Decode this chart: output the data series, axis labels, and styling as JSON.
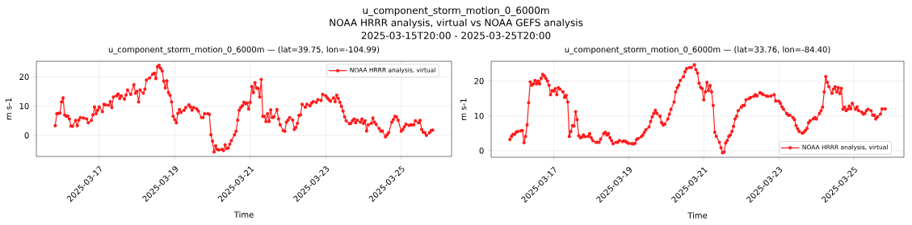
{
  "chart_data": [
    {
      "type": "line",
      "title": "u_component_storm_motion_0_6000m — (lat=39.75, lon=-104.99)",
      "xlabel": "Time",
      "ylabel": "m s-1",
      "annotations": [
        "u_component_storm_motion_0_6000m",
        "NOAA HRRR analysis, virtual vs NOAA GEFS analysis",
        "2025-03-15T20:00 - 2025-03-25T20:00"
      ],
      "xlim": [
        "2025-03-15T08:00",
        "2025-03-26T08:00"
      ],
      "xticks": [
        "2025-03-17",
        "2025-03-19",
        "2025-03-21",
        "2025-03-23",
        "2025-03-25"
      ],
      "ylim": [
        -7.2,
        25.3
      ],
      "yticks": [
        0,
        10,
        20
      ],
      "grid": true,
      "legend": "top right",
      "marker": "circle",
      "series": [
        {
          "name": "NOAA HRRR analysis, virtual",
          "color": "#ff1c1c",
          "x": [
            "2025-03-15T20:00",
            "2025-03-15T21:00",
            "2025-03-15T22:00",
            "2025-03-15T23:00",
            "2025-03-16T00:00",
            "2025-03-16T01:00",
            "2025-03-16T02:00",
            "2025-03-16T03:00",
            "2025-03-16T04:00",
            "2025-03-16T05:00",
            "2025-03-16T06:00",
            "2025-03-16T07:00",
            "2025-03-16T09:00",
            "2025-03-16T10:00",
            "2025-03-16T11:00",
            "2025-03-16T12:00",
            "2025-03-16T14:00",
            "2025-03-16T16:00",
            "2025-03-16T17:00",
            "2025-03-16T19:00",
            "2025-03-16T20:00",
            "2025-03-16T21:00",
            "2025-03-16T22:00",
            "2025-03-16T23:00",
            "2025-03-17T00:00",
            "2025-03-17T02:00",
            "2025-03-17T03:00",
            "2025-03-17T04:00",
            "2025-03-17T06:00",
            "2025-03-17T07:00",
            "2025-03-17T08:00",
            "2025-03-17T09:00",
            "2025-03-17T11:00",
            "2025-03-17T12:00",
            "2025-03-17T13:00",
            "2025-03-17T14:00",
            "2025-03-17T16:00",
            "2025-03-17T17:00",
            "2025-03-17T18:00",
            "2025-03-17T20:00",
            "2025-03-17T22:00",
            "2025-03-17T23:00",
            "2025-03-18T00:00",
            "2025-03-18T01:00",
            "2025-03-18T02:00",
            "2025-03-18T04:00",
            "2025-03-18T05:00",
            "2025-03-18T06:00",
            "2025-03-18T08:00",
            "2025-03-18T10:00",
            "2025-03-18T11:00",
            "2025-03-18T12:00",
            "2025-03-18T13:00",
            "2025-03-18T14:00",
            "2025-03-18T15:00",
            "2025-03-18T16:00",
            "2025-03-18T17:00",
            "2025-03-18T18:00",
            "2025-03-18T19:00",
            "2025-03-18T20:00",
            "2025-03-18T21:00",
            "2025-03-18T22:00",
            "2025-03-18T23:00",
            "2025-03-19T00:00",
            "2025-03-19T01:00",
            "2025-03-19T02:00",
            "2025-03-19T03:00",
            "2025-03-19T04:00",
            "2025-03-19T06:00",
            "2025-03-19T07:00",
            "2025-03-19T09:00",
            "2025-03-19T10:00",
            "2025-03-19T11:00",
            "2025-03-19T12:00",
            "2025-03-19T14:00",
            "2025-03-19T15:00",
            "2025-03-19T17:00",
            "2025-03-19T18:00",
            "2025-03-19T19:00",
            "2025-03-19T21:00",
            "2025-03-19T22:00",
            "2025-03-19T23:00",
            "2025-03-20T00:00",
            "2025-03-20T01:00",
            "2025-03-20T02:00",
            "2025-03-20T03:00",
            "2025-03-20T04:00",
            "2025-03-20T06:00",
            "2025-03-20T07:00",
            "2025-03-20T08:00",
            "2025-03-20T09:00",
            "2025-03-20T10:00",
            "2025-03-20T11:00",
            "2025-03-20T12:00",
            "2025-03-20T14:00",
            "2025-03-20T15:00",
            "2025-03-20T16:00",
            "2025-03-20T17:00",
            "2025-03-20T18:00",
            "2025-03-20T19:00",
            "2025-03-20T20:00",
            "2025-03-20T21:00",
            "2025-03-20T22:00",
            "2025-03-20T23:00",
            "2025-03-21T00:00",
            "2025-03-21T01:00",
            "2025-03-21T02:00",
            "2025-03-21T03:00",
            "2025-03-21T04:00",
            "2025-03-21T05:00",
            "2025-03-21T06:00",
            "2025-03-21T07:00",
            "2025-03-21T08:00",
            "2025-03-21T09:00",
            "2025-03-21T10:00",
            "2025-03-21T11:00",
            "2025-03-21T12:00",
            "2025-03-21T13:00",
            "2025-03-21T14:00",
            "2025-03-21T15:00",
            "2025-03-21T17:00",
            "2025-03-21T18:00",
            "2025-03-21T19:00",
            "2025-03-21T21:00",
            "2025-03-21T22:00",
            "2025-03-21T23:00",
            "2025-03-22T00:00",
            "2025-03-22T01:00",
            "2025-03-22T03:00",
            "2025-03-22T04:00",
            "2025-03-22T05:00",
            "2025-03-22T06:00",
            "2025-03-22T07:00",
            "2025-03-22T08:00",
            "2025-03-22T09:00",
            "2025-03-22T11:00",
            "2025-03-22T12:00",
            "2025-03-22T14:00",
            "2025-03-22T15:00",
            "2025-03-22T16:00",
            "2025-03-22T18:00",
            "2025-03-22T19:00",
            "2025-03-22T21:00",
            "2025-03-22T22:00",
            "2025-03-23T00:00",
            "2025-03-23T01:00",
            "2025-03-23T02:00",
            "2025-03-23T03:00",
            "2025-03-23T05:00",
            "2025-03-23T06:00",
            "2025-03-23T07:00",
            "2025-03-23T08:00",
            "2025-03-23T09:00",
            "2025-03-23T10:00",
            "2025-03-23T11:00",
            "2025-03-23T12:00",
            "2025-03-23T13:00",
            "2025-03-23T15:00",
            "2025-03-23T16:00",
            "2025-03-23T17:00",
            "2025-03-23T18:00",
            "2025-03-23T19:00",
            "2025-03-23T20:00",
            "2025-03-23T22:00",
            "2025-03-23T23:00",
            "2025-03-24T00:00",
            "2025-03-24T01:00",
            "2025-03-24T02:00",
            "2025-03-24T03:00",
            "2025-03-24T05:00",
            "2025-03-24T06:00",
            "2025-03-24T07:00",
            "2025-03-24T08:00",
            "2025-03-24T10:00",
            "2025-03-24T11:00",
            "2025-03-24T12:00",
            "2025-03-24T14:00",
            "2025-03-24T15:00",
            "2025-03-24T16:00",
            "2025-03-24T18:00",
            "2025-03-24T19:00",
            "2025-03-24T20:00",
            "2025-03-24T21:00",
            "2025-03-24T22:00",
            "2025-03-25T00:00",
            "2025-03-25T01:00",
            "2025-03-25T02:00",
            "2025-03-25T03:00",
            "2025-03-25T05:00",
            "2025-03-25T06:00",
            "2025-03-25T07:00",
            "2025-03-25T08:00",
            "2025-03-25T09:00",
            "2025-03-25T11:00",
            "2025-03-25T12:00",
            "2025-03-25T13:00",
            "2025-03-25T14:00",
            "2025-03-25T15:00",
            "2025-03-25T16:00",
            "2025-03-25T18:00",
            "2025-03-25T19:00",
            "2025-03-25T20:00"
          ],
          "values": [
            3.3,
            7.4,
            7.5,
            7.6,
            11.4,
            12.8,
            7.0,
            6.5,
            6.6,
            5.6,
            3.2,
            3.1,
            5.1,
            3.3,
            5.2,
            6.1,
            5.9,
            5.6,
            4.3,
            5.1,
            7.0,
            9.7,
            7.4,
            8.6,
            9.7,
            8.1,
            10.6,
            10.4,
            10.3,
            11.5,
            9.5,
            13.1,
            13.5,
            14.1,
            12.6,
            13.5,
            12.4,
            13.8,
            15.5,
            14.0,
            17.3,
            14.4,
            15.0,
            11.4,
            15.5,
            14.4,
            15.8,
            18.9,
            19.6,
            20.9,
            21.2,
            19.4,
            23.4,
            23.9,
            22.9,
            22.0,
            18.5,
            16.2,
            18.6,
            14.6,
            13.7,
            11.4,
            6.5,
            5.4,
            4.3,
            7.5,
            8.8,
            7.9,
            8.6,
            9.5,
            10.4,
            9.7,
            8.6,
            9.5,
            9.0,
            8.3,
            6.1,
            6.1,
            7.4,
            7.4,
            7.2,
            0.2,
            -2.0,
            -5.7,
            -3.6,
            -4.8,
            -5.0,
            -4.8,
            -5.2,
            -3.2,
            -4.5,
            -4.3,
            -3.0,
            -1.8,
            0.2,
            1.4,
            5.2,
            8.6,
            9.5,
            10.1,
            11.3,
            10.8,
            11.0,
            9.0,
            11.3,
            16.7,
            14.6,
            18.0,
            16.2,
            16.0,
            13.1,
            19.1,
            6.5,
            6.5,
            4.7,
            7.4,
            4.7,
            8.7,
            6.1,
            6.3,
            8.8,
            5.6,
            3.6,
            1.6,
            1.4,
            4.5,
            5.2,
            6.1,
            5.2,
            2.0,
            2.7,
            4.1,
            6.8,
            7.0,
            10.6,
            9.6,
            10.6,
            10.1,
            11.0,
            11.5,
            11.3,
            12.2,
            11.9,
            14.0,
            13.5,
            12.8,
            12.2,
            11.7,
            12.8,
            11.5,
            13.7,
            12.6,
            11.3,
            9.9,
            8.3,
            6.3,
            5.0,
            4.0,
            4.1,
            5.0,
            5.6,
            4.3,
            5.2,
            4.5,
            5.6,
            4.1,
            5.0,
            1.5,
            3.6,
            4.1,
            5.9,
            4.5,
            3.8,
            2.3,
            1.4,
            1.5,
            -0.5,
            0.2,
            0.9,
            4.5,
            5.4,
            6.5,
            6.3,
            5.2,
            1.4,
            2.0,
            2.9,
            3.8,
            3.4,
            3.6,
            3.6,
            3.6,
            5.0,
            4.3,
            5.1,
            2.0,
            1.1,
            0.9,
            0.0,
            0.9,
            1.6,
            1.8
          ]
        }
      ]
    },
    {
      "type": "line",
      "title": "u_component_storm_motion_0_6000m — (lat=33.76, lon=-84.40)",
      "xlabel": "Time",
      "ylabel": "m s-1",
      "xlim": [
        "2025-03-15T08:00",
        "2025-03-26T08:00"
      ],
      "xticks": [
        "2025-03-17",
        "2025-03-19",
        "2025-03-21",
        "2025-03-23",
        "2025-03-25"
      ],
      "ylim": [
        -1.9,
        25.7
      ],
      "yticks": [
        0,
        10,
        20
      ],
      "grid": true,
      "legend": "bottom right",
      "marker": "circle",
      "series": [
        {
          "name": "NOAA HRRR analysis, virtual",
          "color": "#ff1c1c",
          "x": [
            "2025-03-15T20:00",
            "2025-03-15T21:00",
            "2025-03-15T22:00",
            "2025-03-15T23:00",
            "2025-03-16T00:00",
            "2025-03-16T01:00",
            "2025-03-16T03:00",
            "2025-03-16T04:00",
            "2025-03-16T05:00",
            "2025-03-16T06:00",
            "2025-03-16T07:00",
            "2025-03-16T08:00",
            "2025-03-16T09:00",
            "2025-03-16T10:00",
            "2025-03-16T11:00",
            "2025-03-16T12:00",
            "2025-03-16T13:00",
            "2025-03-16T14:00",
            "2025-03-16T15:00",
            "2025-03-16T16:00",
            "2025-03-16T17:00",
            "2025-03-16T18:00",
            "2025-03-16T19:00",
            "2025-03-16T20:00",
            "2025-03-16T21:00",
            "2025-03-16T22:00",
            "2025-03-16T23:00",
            "2025-03-17T00:00",
            "2025-03-17T01:00",
            "2025-03-17T02:00",
            "2025-03-17T03:00",
            "2025-03-17T04:00",
            "2025-03-17T06:00",
            "2025-03-17T07:00",
            "2025-03-17T08:00",
            "2025-03-17T09:00",
            "2025-03-17T10:00",
            "2025-03-17T11:00",
            "2025-03-17T12:00",
            "2025-03-17T13:00",
            "2025-03-17T14:00",
            "2025-03-17T15:00",
            "2025-03-17T16:00",
            "2025-03-17T17:00",
            "2025-03-17T18:00",
            "2025-03-17T19:00",
            "2025-03-17T20:00",
            "2025-03-17T22:00",
            "2025-03-17T23:00",
            "2025-03-18T00:00",
            "2025-03-18T01:00",
            "2025-03-18T03:00",
            "2025-03-18T04:00",
            "2025-03-18T05:00",
            "2025-03-18T06:00",
            "2025-03-18T08:00",
            "2025-03-18T09:00",
            "2025-03-18T10:00",
            "2025-03-18T11:00",
            "2025-03-18T12:00",
            "2025-03-18T13:00",
            "2025-03-18T14:00",
            "2025-03-18T16:00",
            "2025-03-18T17:00",
            "2025-03-18T18:00",
            "2025-03-18T20:00",
            "2025-03-18T21:00",
            "2025-03-18T22:00",
            "2025-03-18T23:00",
            "2025-03-19T00:00",
            "2025-03-19T02:00",
            "2025-03-19T03:00",
            "2025-03-19T04:00",
            "2025-03-19T05:00",
            "2025-03-19T06:00",
            "2025-03-19T08:00",
            "2025-03-19T09:00",
            "2025-03-19T10:00",
            "2025-03-19T11:00",
            "2025-03-19T13:00",
            "2025-03-19T14:00",
            "2025-03-19T15:00",
            "2025-03-19T16:00",
            "2025-03-19T17:00",
            "2025-03-19T18:00",
            "2025-03-19T20:00",
            "2025-03-19T21:00",
            "2025-03-19T22:00",
            "2025-03-19T23:00",
            "2025-03-20T01:00",
            "2025-03-20T02:00",
            "2025-03-20T03:00",
            "2025-03-20T05:00",
            "2025-03-20T06:00",
            "2025-03-20T07:00",
            "2025-03-20T08:00",
            "2025-03-20T09:00",
            "2025-03-20T11:00",
            "2025-03-20T12:00",
            "2025-03-20T13:00",
            "2025-03-20T15:00",
            "2025-03-20T16:00",
            "2025-03-20T18:00",
            "2025-03-20T19:00",
            "2025-03-20T20:00",
            "2025-03-20T21:00",
            "2025-03-20T22:00",
            "2025-03-20T23:00",
            "2025-03-21T00:00",
            "2025-03-21T01:00",
            "2025-03-21T02:00",
            "2025-03-21T03:00",
            "2025-03-21T04:00",
            "2025-03-21T05:00",
            "2025-03-21T06:00",
            "2025-03-21T07:00",
            "2025-03-21T08:00",
            "2025-03-21T10:00",
            "2025-03-21T11:00",
            "2025-03-21T12:00",
            "2025-03-21T13:00",
            "2025-03-21T14:00",
            "2025-03-21T15:00",
            "2025-03-21T16:00",
            "2025-03-21T17:00",
            "2025-03-21T18:00",
            "2025-03-21T19:00",
            "2025-03-21T20:00",
            "2025-03-21T21:00",
            "2025-03-21T22:00",
            "2025-03-22T00:00",
            "2025-03-22T01:00",
            "2025-03-22T02:00",
            "2025-03-22T03:00",
            "2025-03-22T05:00",
            "2025-03-22T06:00",
            "2025-03-22T08:00",
            "2025-03-22T09:00",
            "2025-03-22T10:00",
            "2025-03-22T12:00",
            "2025-03-22T13:00",
            "2025-03-22T14:00",
            "2025-03-22T16:00",
            "2025-03-22T17:00",
            "2025-03-22T19:00",
            "2025-03-22T21:00",
            "2025-03-22T22:00",
            "2025-03-23T00:00",
            "2025-03-23T01:00",
            "2025-03-23T02:00",
            "2025-03-23T03:00",
            "2025-03-23T05:00",
            "2025-03-23T06:00",
            "2025-03-23T07:00",
            "2025-03-23T09:00",
            "2025-03-23T10:00",
            "2025-03-23T11:00",
            "2025-03-23T12:00",
            "2025-03-23T13:00",
            "2025-03-23T15:00",
            "2025-03-23T16:00",
            "2025-03-23T17:00",
            "2025-03-23T18:00",
            "2025-03-23T19:00",
            "2025-03-23T20:00",
            "2025-03-23T22:00",
            "2025-03-23T23:00",
            "2025-03-24T00:00",
            "2025-03-24T02:00",
            "2025-03-24T03:00",
            "2025-03-24T04:00",
            "2025-03-24T05:00",
            "2025-03-24T06:00",
            "2025-03-24T07:00",
            "2025-03-24T08:00",
            "2025-03-24T10:00",
            "2025-03-24T11:00",
            "2025-03-24T12:00",
            "2025-03-24T13:00",
            "2025-03-24T14:00",
            "2025-03-24T15:00",
            "2025-03-24T16:00",
            "2025-03-24T17:00",
            "2025-03-24T18:00",
            "2025-03-24T19:00",
            "2025-03-24T20:00",
            "2025-03-24T21:00",
            "2025-03-24T22:00",
            "2025-03-24T23:00",
            "2025-03-25T01:00",
            "2025-03-25T02:00",
            "2025-03-25T03:00",
            "2025-03-25T05:00",
            "2025-03-25T06:00",
            "2025-03-25T07:00",
            "2025-03-25T08:00",
            "2025-03-25T09:00",
            "2025-03-25T11:00",
            "2025-03-25T12:00",
            "2025-03-25T13:00",
            "2025-03-25T14:00",
            "2025-03-25T15:00",
            "2025-03-25T17:00",
            "2025-03-25T18:00",
            "2025-03-25T20:00"
          ],
          "values": [
            3.2,
            4.1,
            4.7,
            4.7,
            5.3,
            5.5,
            5.7,
            5.8,
            2.3,
            4.1,
            7.4,
            13.8,
            19.8,
            18.8,
            19.2,
            20.2,
            19.2,
            20.0,
            19.2,
            20.8,
            21.9,
            21.5,
            20.8,
            20.0,
            18.8,
            16.1,
            17.3,
            17.1,
            17.8,
            16.1,
            18.1,
            17.7,
            16.9,
            15.3,
            15.9,
            14.0,
            4.1,
            5.5,
            7.2,
            7.1,
            11.2,
            8.9,
            4.3,
            3.7,
            3.9,
            4.5,
            4.0,
            4.1,
            4.9,
            3.7,
            2.9,
            2.4,
            2.4,
            2.4,
            3.3,
            4.9,
            5.3,
            4.5,
            4.9,
            3.7,
            2.9,
            2.0,
            2.4,
            2.4,
            2.9,
            2.6,
            2.8,
            2.6,
            2.3,
            2.1,
            2.0,
            1.9,
            2.1,
            3.2,
            3.5,
            4.0,
            4.5,
            5.3,
            6.0,
            6.8,
            8.4,
            9.7,
            10.7,
            11.6,
            10.7,
            9.9,
            8.1,
            7.4,
            7.6,
            9.1,
            10.5,
            11.9,
            14.0,
            16.9,
            18.1,
            18.8,
            20.2,
            21.3,
            22.7,
            23.6,
            23.9,
            23.9,
            24.7,
            23.3,
            22.3,
            19.4,
            18.2,
            17.8,
            14.6,
            16.9,
            19.6,
            17.3,
            18.7,
            16.9,
            13.0,
            5.3,
            4.1,
            2.4,
            0.8,
            -0.6,
            -0.4,
            2.2,
            2.9,
            4.1,
            4.5,
            5.5,
            7.0,
            9.1,
            9.9,
            11.5,
            12.5,
            13.0,
            13.0,
            14.6,
            15.0,
            15.3,
            15.6,
            16.1,
            15.7,
            16.7,
            16.4,
            16.1,
            15.7,
            15.6,
            15.7,
            16.1,
            14.3,
            14.2,
            13.6,
            12.6,
            11.9,
            10.7,
            10.2,
            10.2,
            9.5,
            8.9,
            7.2,
            6.3,
            5.5,
            5.0,
            5.3,
            5.8,
            6.4,
            8.0,
            8.6,
            9.1,
            9.5,
            9.1,
            10.7,
            11.5,
            12.5,
            16.9,
            21.3,
            19.6,
            18.4,
            16.5,
            17.7,
            18.4,
            16.9,
            18.1,
            16.4,
            17.9,
            11.9,
            12.5,
            11.5,
            11.9,
            12.8,
            12.0,
            13.6,
            11.9,
            12.6,
            11.5,
            11.1,
            10.5,
            10.7,
            11.5,
            11.9,
            11.5,
            10.2,
            10.2,
            9.1,
            9.7,
            10.5,
            12.0,
            12.0
          ]
        }
      ]
    }
  ]
}
